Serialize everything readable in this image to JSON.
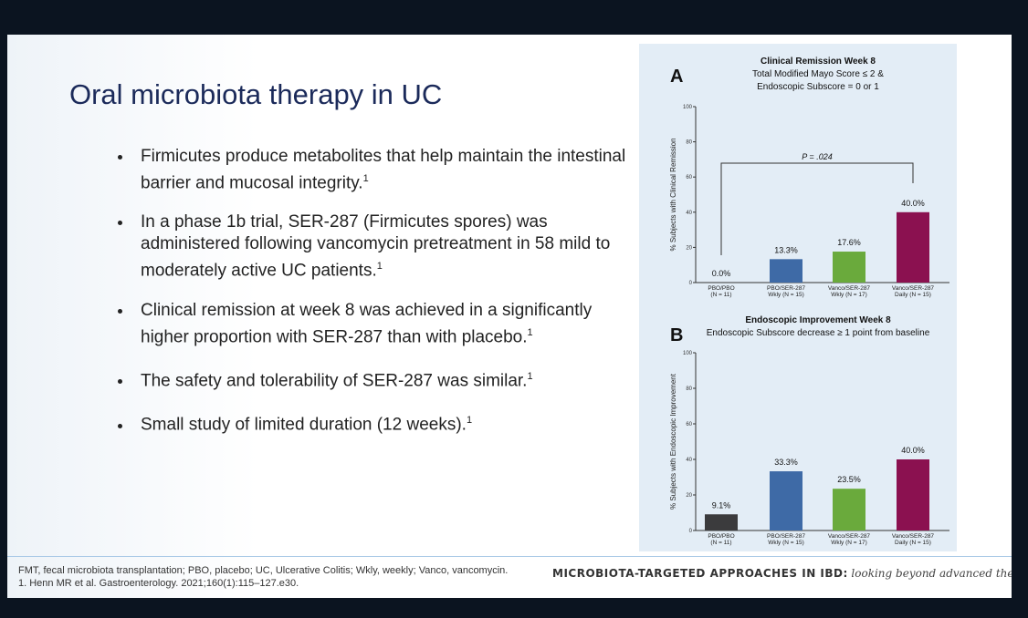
{
  "slide": {
    "title": "Oral microbiota therapy in UC",
    "bullets": [
      {
        "text": "Firmicutes produce metabolites that help maintain the intestinal barrier and mucosal integrity.",
        "ref": "1"
      },
      {
        "text": "In a phase 1b trial, SER-287 (Firmicutes spores) was administered following vancomycin pretreatment in 58 mild to moderately active UC patients.",
        "ref": "1"
      },
      {
        "text": "Clinical remission at week 8 was achieved in a significantly higher proportion with SER-287 than with placebo.",
        "ref": "1"
      },
      {
        "text": "The safety and tolerability of SER-287 was similar.",
        "ref": "1"
      },
      {
        "text": "Small study of limited duration (12 weeks).",
        "ref": "1"
      }
    ],
    "footnotes": [
      "FMT, fecal microbiota transplantation; PBO, placebo; UC, Ulcerative Colitis; Wkly, weekly; Vanco, vancomycin.",
      "1. Henn MR et al. Gastroenterology. 2021;160(1):115–127.e30."
    ],
    "banner": {
      "bold": "MICROBIOTA-TARGETED APPROACHES IN IBD:",
      "italic": "looking beyond advanced therapies"
    }
  },
  "charts": [
    {
      "type": "bar",
      "panel": "A",
      "title": "Clinical Remission  Week 8",
      "subtitle": [
        "Total Modified Mayo Score ≤ 2 &",
        "Endoscopic Subscore = 0 or 1"
      ],
      "y_label": "% Subjects with Clinical Remission",
      "categories": [
        "PBO/PBO",
        "PBO/SER-287",
        "Vanco/SER-287",
        "Vanco/SER-287"
      ],
      "category_notes": [
        "(N = 11)",
        "Wkly (N = 15)",
        "Wkly (N = 17)",
        "Daily (N = 15)"
      ],
      "values": [
        0,
        13.3,
        17.6,
        40.0
      ],
      "value_labels": [
        "0.0%",
        "13.3%",
        "17.6%",
        "40.0%"
      ],
      "colors": [
        "#3b3b3d",
        "#3e6aa6",
        "#6aaa3c",
        "#8b1150"
      ],
      "annotation": "P = .024",
      "ylim": [
        0,
        100
      ],
      "yticks": [
        0,
        20,
        40,
        60,
        80,
        100
      ]
    },
    {
      "type": "bar",
      "panel": "B",
      "title": "Endoscopic Improvement  Week 8",
      "subtitle": [
        "Endoscopic Subscore decrease ≥ 1 point from baseline"
      ],
      "y_label": "% Subjects with Endoscopic Improvement",
      "categories": [
        "PBO/PBO",
        "PBO/SER-287",
        "Vanco/SER-287",
        "Vanco/SER-287"
      ],
      "category_notes": [
        "(N = 11)",
        "Wkly (N = 15)",
        "Wkly (N = 17)",
        "Daily (N = 15)"
      ],
      "values": [
        9.1,
        33.3,
        23.5,
        40.0
      ],
      "value_labels": [
        "9.1%",
        "33.3%",
        "23.5%",
        "40.0%"
      ],
      "colors": [
        "#3b3b3d",
        "#3e6aa6",
        "#6aaa3c",
        "#8b1150"
      ],
      "ylim": [
        0,
        100
      ],
      "yticks": [
        0,
        20,
        40,
        60,
        80,
        100
      ]
    }
  ]
}
